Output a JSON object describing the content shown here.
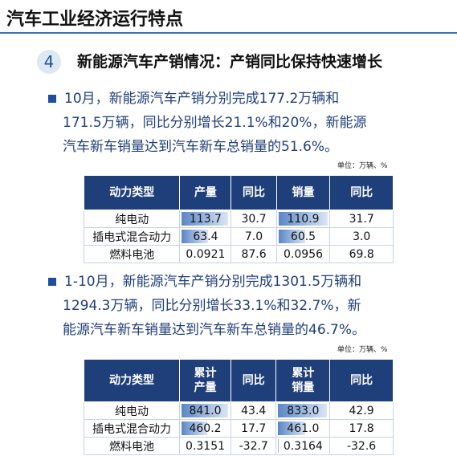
{
  "header": {
    "title": "汽车工业经济运行特点"
  },
  "section": {
    "number": "4",
    "title": "新能源汽车产销情况：产销同比保持快速增长"
  },
  "blocks": [
    {
      "lines": [
        "10月，新能源汽车产销分别完成177.2万辆和",
        "171.5万辆，同比分别增长21.1%和20%，新能源",
        "汽车新车销量达到汽车新车总销量的51.6%。"
      ],
      "unit": "单位：万辆、%",
      "table": {
        "header": [
          "动力类型",
          "产量",
          "同比",
          "销量",
          "同比"
        ],
        "rows": [
          [
            "纯电动",
            "113.7",
            "30.7",
            "110.9",
            "31.7"
          ],
          [
            "插电式混合动力",
            "63.4",
            "7.0",
            "60.5",
            "3.0"
          ],
          [
            "燃料电池",
            "0.0921",
            "87.6",
            "0.0956",
            "69.8"
          ]
        ]
      }
    },
    {
      "lines": [
        "1-10月，新能源汽车产销分别完成1301.5万辆和",
        "1294.3万辆，同比分别增长33.1%和32.7%，新",
        "能源汽车新车销量达到汽车新车总销量的46.7%。"
      ],
      "unit": "单位：万辆、%",
      "table": {
        "header": [
          "动力类型",
          "累计产量",
          "同比",
          "累计销量",
          "同比"
        ],
        "rows": [
          [
            "纯电动",
            "841.0",
            "43.4",
            "833.0",
            "42.9"
          ],
          [
            "插电式混合动力",
            "460.2",
            "17.7",
            "461.0",
            "17.8"
          ],
          [
            "燃料电池",
            "0.3151",
            "-32.7",
            "0.3164",
            "-32.6"
          ]
        ]
      }
    }
  ]
}
